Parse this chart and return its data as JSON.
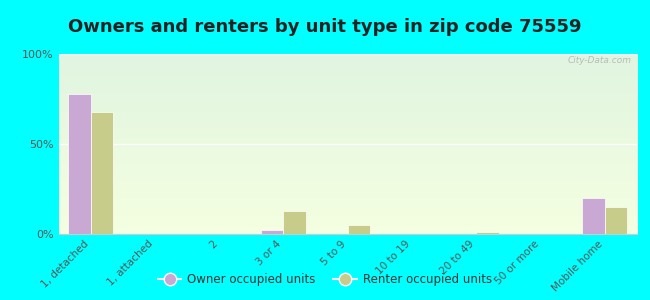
{
  "title": "Owners and renters by unit type in zip code 75559",
  "categories": [
    "1, detached",
    "1, attached",
    "2",
    "3 or 4",
    "5 to 9",
    "10 to 19",
    "20 to 49",
    "50 or more",
    "Mobile home"
  ],
  "owner_values": [
    78,
    0,
    0,
    2,
    0,
    0,
    0,
    0,
    20
  ],
  "renter_values": [
    68,
    0,
    0,
    13,
    5,
    0,
    1,
    0,
    15
  ],
  "owner_color": "#c9a8d4",
  "renter_color": "#c8cc8a",
  "background_color": "#00ffff",
  "ylabel_ticks": [
    "0%",
    "50%",
    "100%"
  ],
  "ytick_vals": [
    0,
    50,
    100
  ],
  "ylim": [
    0,
    100
  ],
  "legend_owner": "Owner occupied units",
  "legend_renter": "Renter occupied units",
  "title_fontsize": 13,
  "watermark": "City-Data.com"
}
